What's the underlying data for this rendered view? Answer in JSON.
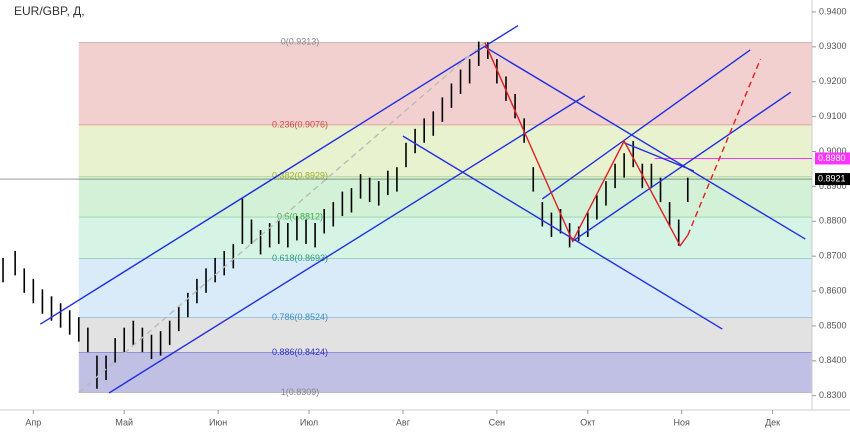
{
  "chart_data": {
    "type": "ohlc",
    "title": "EUR/GBP, Д,",
    "x": [
      -10,
      -6,
      -3,
      0,
      3,
      6,
      9,
      12,
      15,
      18,
      21,
      24,
      27,
      30,
      33,
      36,
      39,
      42,
      45,
      48,
      51,
      54,
      57,
      60,
      63,
      66,
      69,
      72,
      75,
      78,
      81,
      84,
      87,
      90,
      93,
      96,
      99,
      102,
      105,
      108,
      111,
      114,
      117,
      120,
      123,
      126,
      129,
      132,
      135,
      138,
      141,
      144,
      147,
      150,
      153,
      156,
      159,
      162,
      165,
      168,
      171,
      174,
      177,
      180,
      183,
      186,
      189,
      192,
      195,
      198,
      201,
      204,
      207,
      210,
      213,
      216
    ],
    "high": [
      0.8695,
      0.8715,
      0.8665,
      0.8635,
      0.8605,
      0.8585,
      0.8565,
      0.8545,
      0.8525,
      0.8495,
      0.8415,
      0.8415,
      0.8465,
      0.8495,
      0.8515,
      0.8495,
      0.8475,
      0.8485,
      0.8515,
      0.8555,
      0.8595,
      0.8635,
      0.8665,
      0.8695,
      0.8715,
      0.8735,
      0.8865,
      0.8805,
      0.8775,
      0.8795,
      0.8805,
      0.8795,
      0.8815,
      0.8805,
      0.8795,
      0.8835,
      0.8855,
      0.8885,
      0.8895,
      0.8935,
      0.8925,
      0.8915,
      0.8945,
      0.8955,
      0.9025,
      0.9065,
      0.9095,
      0.9115,
      0.9155,
      0.9195,
      0.9235,
      0.9265,
      0.9315,
      0.9313,
      0.9265,
      0.9215,
      0.9165,
      0.9095,
      0.8955,
      0.8855,
      0.8825,
      0.8835,
      0.8795,
      0.8785,
      0.8825,
      0.8875,
      0.8915,
      0.8965,
      0.8995,
      0.903,
      0.8965,
      0.8965,
      0.8925,
      0.8855,
      0.8805,
      0.8925
    ],
    "low": [
      0.8625,
      0.8645,
      0.8595,
      0.8565,
      0.8535,
      0.8515,
      0.8495,
      0.8475,
      0.8455,
      0.8425,
      0.832,
      0.8345,
      0.8395,
      0.8425,
      0.8445,
      0.8425,
      0.8405,
      0.8415,
      0.8445,
      0.8485,
      0.8525,
      0.8565,
      0.8595,
      0.8625,
      0.8645,
      0.8665,
      0.8735,
      0.8735,
      0.8705,
      0.8725,
      0.8735,
      0.8725,
      0.8745,
      0.8735,
      0.8725,
      0.8765,
      0.8785,
      0.8815,
      0.8825,
      0.8865,
      0.8855,
      0.8845,
      0.8875,
      0.8885,
      0.8955,
      0.8995,
      0.9025,
      0.9045,
      0.9085,
      0.9125,
      0.9165,
      0.9195,
      0.9245,
      0.9265,
      0.9195,
      0.9145,
      0.9095,
      0.9025,
      0.8885,
      0.8785,
      0.8755,
      0.8765,
      0.8725,
      0.8743,
      0.8755,
      0.8805,
      0.8845,
      0.8895,
      0.8925,
      0.8955,
      0.8895,
      0.8895,
      0.8855,
      0.8785,
      0.873,
      0.8855
    ],
    "color": "#000000",
    "xlim": [
      -11,
      257
    ],
    "ylim": [
      0.8282,
      0.9417
    ],
    "xticks": [
      {
        "value": 0,
        "label": "Апр"
      },
      {
        "value": 30,
        "label": "Май"
      },
      {
        "value": 61,
        "label": "Июн"
      },
      {
        "value": 91,
        "label": "Июл"
      },
      {
        "value": 122,
        "label": "Авг"
      },
      {
        "value": 153,
        "label": "Сен"
      },
      {
        "value": 183,
        "label": "Окт"
      },
      {
        "value": 214,
        "label": "Ноя"
      },
      {
        "value": 244,
        "label": "Дек"
      }
    ],
    "yticks": [
      {
        "value": 0.83,
        "label": "0.8300"
      },
      {
        "value": 0.84,
        "label": "0.8400"
      },
      {
        "value": 0.85,
        "label": "0.8500"
      },
      {
        "value": 0.86,
        "label": "0.8600"
      },
      {
        "value": 0.87,
        "label": "0.8700"
      },
      {
        "value": 0.88,
        "label": "0.8800"
      },
      {
        "value": 0.89,
        "label": "0.8900"
      },
      {
        "value": 0.9,
        "label": "0.9000"
      },
      {
        "value": 0.91,
        "label": "0.9100"
      },
      {
        "value": 0.92,
        "label": "0.9200"
      },
      {
        "value": 0.93,
        "label": "0.9300"
      },
      {
        "value": 0.94,
        "label": "0.9400"
      }
    ],
    "fib_start": 15,
    "fib_levels": [
      {
        "value": 0.9313,
        "label": "0(0.9313)",
        "color": "#888888"
      },
      {
        "value": 0.9076,
        "label": "0.236(0.9076)",
        "color": "#d04848"
      },
      {
        "value": 0.8929,
        "label": "0.382(0.8929)",
        "color": "#a0b030"
      },
      {
        "value": 0.8812,
        "label": "0.5(0.8812)",
        "color": "#40b050"
      },
      {
        "value": 0.8693,
        "label": "0.618(0.8693)",
        "color": "#30a080"
      },
      {
        "value": 0.8524,
        "label": "0.786(0.8524)",
        "color": "#4090c0"
      },
      {
        "value": 0.8424,
        "label": "0.886(0.8424)",
        "color": "#3030c0"
      },
      {
        "value": 0.8309,
        "label": "1(0.8309)",
        "color": "#888888"
      }
    ],
    "fib_zone_colors": [
      "#f3d0d0",
      "#e9f2cf",
      "#d3f1d6",
      "#d6f4e6",
      "#d9ebf8",
      "#e2e2e2",
      "#c0c0e4"
    ],
    "drawings": [
      {
        "color": "#1f2fe0",
        "x": [
          2.3,
          160
        ],
        "y": [
          0.8505,
          0.9361
        ]
      },
      {
        "color": "#1f2fe0",
        "x": [
          25,
          182
        ],
        "y": [
          0.8308,
          0.9159
        ]
      },
      {
        "color": "#1f2fe0",
        "x": [
          149,
          254.8
        ],
        "y": [
          0.93,
          0.8749
        ]
      },
      {
        "color": "#1f2fe0",
        "x": [
          122,
          227.4
        ],
        "y": [
          0.9044,
          0.8491
        ]
      },
      {
        "color": "#1f2fe0",
        "x": [
          168,
          236.6
        ],
        "y": [
          0.8864,
          0.9291
        ]
      },
      {
        "color": "#1f2fe0",
        "x": [
          178,
          250
        ],
        "y": [
          0.8743,
          0.917
        ]
      },
      {
        "color": "#1f2fe0",
        "x": [
          195,
          218
        ],
        "y": [
          0.9025,
          0.8944
        ]
      },
      {
        "color": "#e02020",
        "x": [
          149,
          178,
          195,
          213.5,
          216
        ],
        "y": [
          0.9313,
          0.8743,
          0.903,
          0.873,
          0.876
        ]
      },
      {
        "color": "#e02020",
        "dashed": true,
        "x": [
          216,
          240
        ],
        "y": [
          0.876,
          0.9265
        ]
      },
      {
        "color": "#bbbbbb",
        "dashed": true,
        "x": [
          15,
          149
        ],
        "y": [
          0.8309,
          0.9313
        ]
      }
    ],
    "price_marks": [
      {
        "value": 0.898,
        "label": "0.8980",
        "color": "#ff33ff",
        "from": 205
      },
      {
        "value": 0.8921,
        "label": "0.8921",
        "color": "#000000",
        "from": -11
      }
    ]
  }
}
